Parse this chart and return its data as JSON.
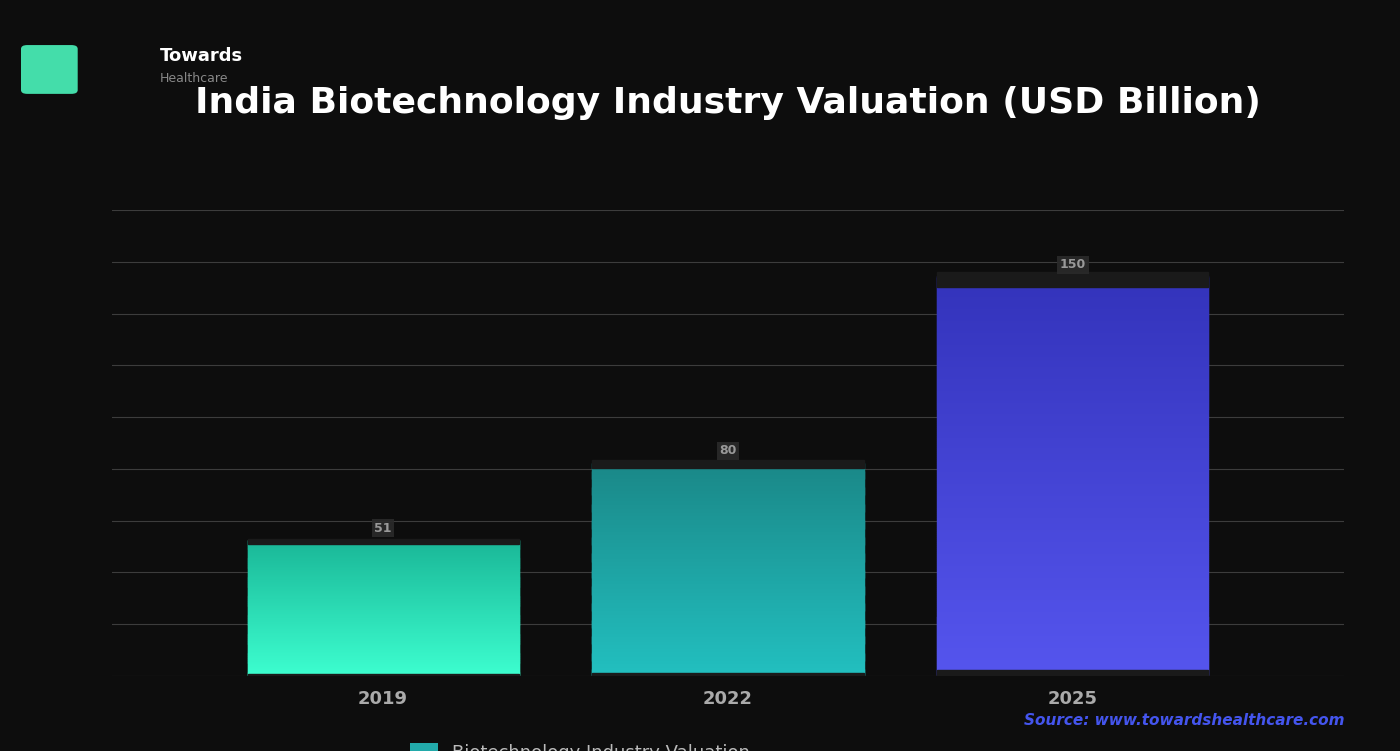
{
  "categories": [
    "2019",
    "2022",
    "2025"
  ],
  "values": [
    51,
    80,
    150
  ],
  "value_labels": [
    "51",
    "80",
    "150"
  ],
  "title": "India Biotechnology Industry Valuation (USD Billion)",
  "legend_label": "Biotechnology Industry Valuation",
  "source_text": "Source: www.towardshealthcare.com",
  "background_color": "#0d0d0d",
  "grid_color": "#cccccc",
  "grid_alpha": 0.25,
  "title_color": "#ffffff",
  "label_color": "#aaaaaa",
  "value_label_color": "#333333",
  "value_label_bg": "#555555",
  "source_color": "#4455ee",
  "bar_colors_start": [
    "#3dffd0",
    "#22c0c0",
    "#5555ee"
  ],
  "bar_colors_end": [
    "#1ab898",
    "#1a8888",
    "#3333bb"
  ],
  "ylim": [
    0,
    175
  ],
  "bar_width": 0.22,
  "bar_positions": [
    0.25,
    0.5,
    0.75
  ],
  "accent_line_color": "#00d8d0",
  "accent_bar_color": "#4422bb",
  "title_fontsize": 26,
  "tick_fontsize": 13,
  "legend_fontsize": 13,
  "value_fontsize": 9,
  "n_grid_lines": 9
}
